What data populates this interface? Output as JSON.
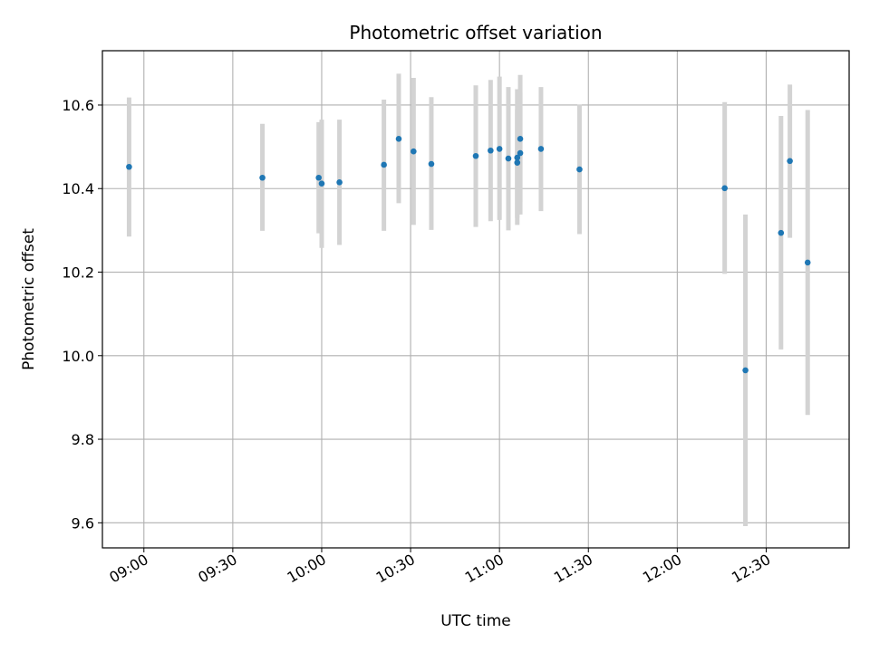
{
  "chart_data": {
    "type": "scatter",
    "title": "Photometric offset variation",
    "xlabel": "UTC time",
    "ylabel": "Photometric offset",
    "x_is_time": true,
    "xlim": [
      "08:46",
      "12:58"
    ],
    "ylim": [
      9.54,
      10.73
    ],
    "yticks": [
      9.6,
      9.8,
      10.0,
      10.2,
      10.4,
      10.6
    ],
    "ytick_labels": [
      "9.6",
      "9.8",
      "10.0",
      "10.2",
      "10.4",
      "10.6"
    ],
    "xticks": [
      "09:00",
      "09:30",
      "10:00",
      "10:30",
      "11:00",
      "11:30",
      "12:00",
      "12:30"
    ],
    "xtick_labels": [
      "09:00",
      "09:30",
      "10:00",
      "10:30",
      "11:00",
      "11:30",
      "12:00",
      "12:30"
    ],
    "grid": true,
    "colors": {
      "point": "#1f77b4",
      "errorbar": "#d3d3d3",
      "grid": "#b0b0b0"
    },
    "series": [
      {
        "points": [
          {
            "x": "08:55",
            "y": 10.452,
            "ylow": 10.285,
            "yhigh": 10.618
          },
          {
            "x": "09:40",
            "y": 10.426,
            "ylow": 10.299,
            "yhigh": 10.555
          },
          {
            "x": "09:59",
            "y": 10.426,
            "ylow": 10.293,
            "yhigh": 10.559
          },
          {
            "x": "10:00",
            "y": 10.412,
            "ylow": 10.258,
            "yhigh": 10.565
          },
          {
            "x": "10:06",
            "y": 10.415,
            "ylow": 10.265,
            "yhigh": 10.565
          },
          {
            "x": "10:21",
            "y": 10.457,
            "ylow": 10.299,
            "yhigh": 10.613
          },
          {
            "x": "10:26",
            "y": 10.519,
            "ylow": 10.365,
            "yhigh": 10.675
          },
          {
            "x": "10:31",
            "y": 10.489,
            "ylow": 10.313,
            "yhigh": 10.665
          },
          {
            "x": "10:37",
            "y": 10.459,
            "ylow": 10.301,
            "yhigh": 10.619
          },
          {
            "x": "10:52",
            "y": 10.478,
            "ylow": 10.308,
            "yhigh": 10.647
          },
          {
            "x": "10:57",
            "y": 10.491,
            "ylow": 10.322,
            "yhigh": 10.66
          },
          {
            "x": "11:00",
            "y": 10.495,
            "ylow": 10.325,
            "yhigh": 10.668
          },
          {
            "x": "11:03",
            "y": 10.472,
            "ylow": 10.3,
            "yhigh": 10.643
          },
          {
            "x": "11:06",
            "y": 10.474,
            "ylow": 10.313,
            "yhigh": 10.638
          },
          {
            "x": "11:06",
            "y": 10.462,
            "ylow": 10.33,
            "yhigh": 10.59
          },
          {
            "x": "11:07",
            "y": 10.485,
            "ylow": 10.338,
            "yhigh": 10.63
          },
          {
            "x": "11:07",
            "y": 10.519,
            "ylow": 10.368,
            "yhigh": 10.672
          },
          {
            "x": "11:14",
            "y": 10.495,
            "ylow": 10.346,
            "yhigh": 10.643
          },
          {
            "x": "11:27",
            "y": 10.446,
            "ylow": 10.291,
            "yhigh": 10.601
          },
          {
            "x": "12:16",
            "y": 10.401,
            "ylow": 10.196,
            "yhigh": 10.607
          },
          {
            "x": "12:23",
            "y": 9.965,
            "ylow": 9.592,
            "yhigh": 10.338
          },
          {
            "x": "12:35",
            "y": 10.294,
            "ylow": 10.015,
            "yhigh": 10.574
          },
          {
            "x": "12:38",
            "y": 10.466,
            "ylow": 10.282,
            "yhigh": 10.649
          },
          {
            "x": "12:44",
            "y": 10.223,
            "ylow": 9.858,
            "yhigh": 10.588
          }
        ]
      }
    ]
  }
}
